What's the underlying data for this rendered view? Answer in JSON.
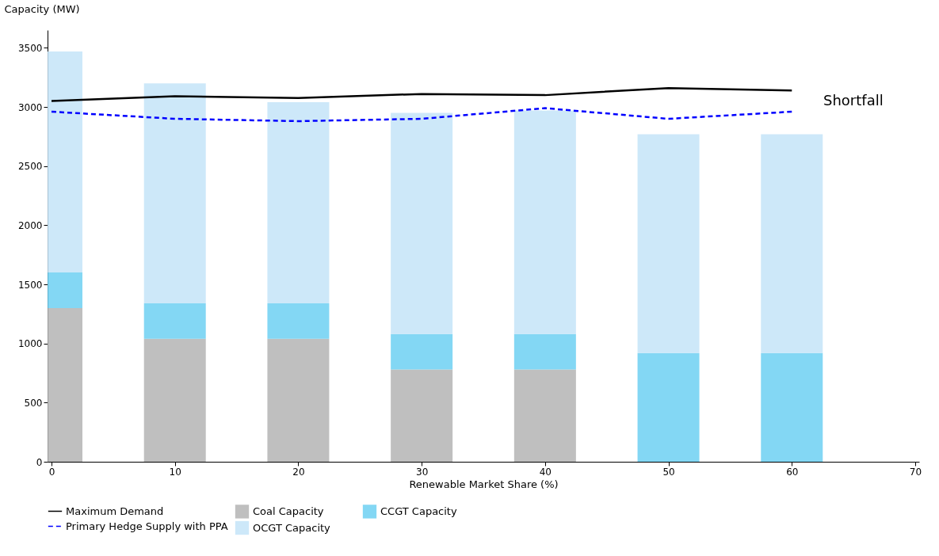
{
  "chart_data": {
    "type": "bar",
    "stacked": true,
    "xlabel": "Renewable Market Share (%)",
    "ylabel": "Capacity (MW)",
    "x": [
      0,
      10,
      20,
      30,
      40,
      50,
      60
    ],
    "series": [
      {
        "name": "Coal Capacity",
        "color": "#b4b4b4",
        "values": [
          1300,
          1040,
          1040,
          780,
          780,
          0,
          0
        ]
      },
      {
        "name": "CCGT Capacity",
        "color": "#6dd0f2",
        "values": [
          300,
          300,
          300,
          300,
          300,
          920,
          920
        ]
      },
      {
        "name": "OCGT Capacity",
        "color": "#c4e4f8",
        "values": [
          1870,
          1860,
          1700,
          1870,
          1890,
          1850,
          1850
        ]
      },
      {
        "name": "Maximum Demand",
        "type": "line",
        "color": "#000000",
        "line_style": "solid",
        "values": [
          3050,
          3090,
          3075,
          3110,
          3100,
          3160,
          3140
        ]
      },
      {
        "name": "Primary Hedge Supply with PPA",
        "type": "line",
        "color": "#0000ff",
        "line_style": "dashed",
        "values": [
          2960,
          2900,
          2880,
          2900,
          2990,
          2900,
          2960
        ]
      }
    ],
    "xlim": [
      0,
      70
    ],
    "xticks": [
      0,
      10,
      20,
      30,
      40,
      50,
      60,
      70
    ],
    "ylim": [
      0,
      3650
    ],
    "yticks": [
      0,
      500,
      1000,
      1500,
      2000,
      2500,
      3000,
      3500
    ],
    "grid": false,
    "legend": "bottom",
    "annotations": [
      "Shortfall"
    ]
  }
}
